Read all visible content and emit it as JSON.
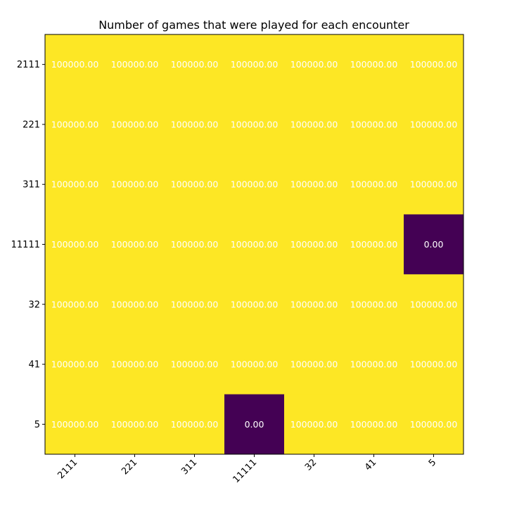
{
  "chart_data": {
    "type": "heatmap",
    "title": "Number of games that were played for each encounter",
    "x_categories": [
      "2111",
      "221",
      "311",
      "11111",
      "32",
      "41",
      "5"
    ],
    "y_categories": [
      "2111",
      "221",
      "311",
      "11111",
      "32",
      "41",
      "5"
    ],
    "values": [
      [
        100000,
        100000,
        100000,
        100000,
        100000,
        100000,
        100000
      ],
      [
        100000,
        100000,
        100000,
        100000,
        100000,
        100000,
        100000
      ],
      [
        100000,
        100000,
        100000,
        100000,
        100000,
        100000,
        100000
      ],
      [
        100000,
        100000,
        100000,
        100000,
        100000,
        100000,
        0
      ],
      [
        100000,
        100000,
        100000,
        100000,
        100000,
        100000,
        100000
      ],
      [
        100000,
        100000,
        100000,
        100000,
        100000,
        100000,
        100000
      ],
      [
        100000,
        100000,
        100000,
        0,
        100000,
        100000,
        100000
      ]
    ],
    "value_format": "0.00",
    "x_tick_rotation_deg": 45,
    "colormap": "viridis",
    "colors": {
      "max": "#fde725",
      "min": "#440154"
    },
    "value_range": [
      0,
      100000
    ],
    "grid": false,
    "legend": "none"
  }
}
